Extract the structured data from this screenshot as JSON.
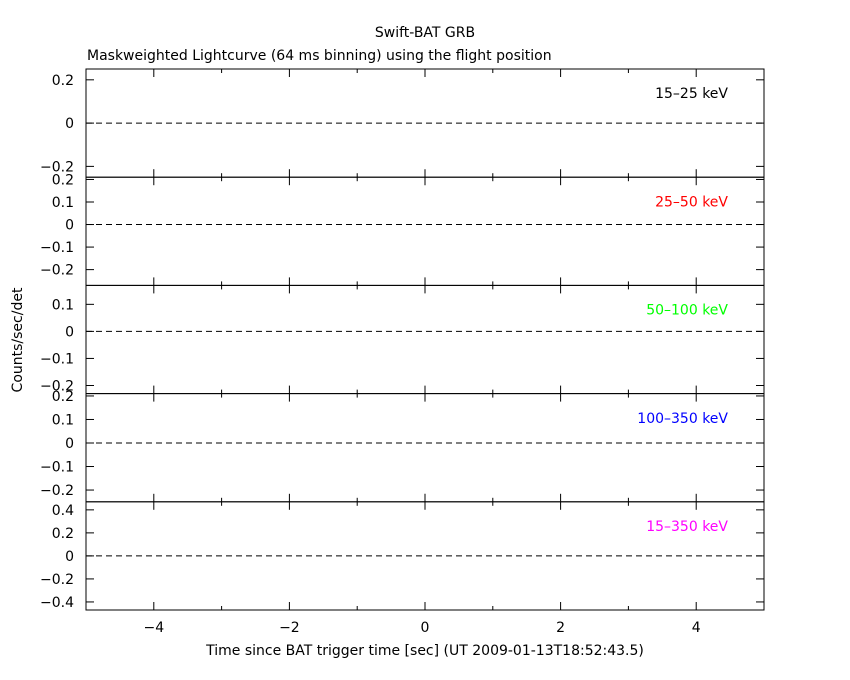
{
  "title": "Swift-BAT GRB",
  "subtitle": "Maskweighted Lightcurve (64 ms binning) using the flight position",
  "ylabel": "Counts/sec/det",
  "xlabel": "Time since BAT trigger time [sec] (UT 2009-01-13T18:52:43.5)",
  "chart_data": {
    "type": "line",
    "title": "Swift-BAT GRB",
    "subtitle": "Maskweighted Lightcurve (64 ms binning) using the flight position",
    "xlabel": "Time since BAT trigger time [sec] (UT 2009-01-13T18:52:43.5)",
    "ylabel": "Counts/sec/det",
    "xlim": [
      -5,
      5
    ],
    "xticks": [
      -4,
      -2,
      0,
      2,
      4
    ],
    "xtick_labels": [
      "−4",
      "−2",
      "0",
      "2",
      "4"
    ],
    "reference_line": 0,
    "panels": [
      {
        "name": "15–25 keV",
        "color": "#000000",
        "ylim": [
          -0.25,
          0.25
        ],
        "yticks": [
          -0.2,
          0,
          0.2
        ],
        "ytick_labels": [
          "−0.2",
          "0",
          "0.2"
        ],
        "values": []
      },
      {
        "name": "25–50 keV",
        "color": "#ff0000",
        "ylim": [
          -0.27,
          0.21
        ],
        "yticks": [
          -0.2,
          -0.1,
          0,
          0.1,
          0.2
        ],
        "ytick_labels": [
          "−0.2",
          "−0.1",
          "0",
          "0.1",
          "0.2"
        ],
        "values": []
      },
      {
        "name": "50–100 keV",
        "color": "#00ff00",
        "ylim": [
          -0.23,
          0.17
        ],
        "yticks": [
          -0.2,
          -0.1,
          0,
          0.1
        ],
        "ytick_labels": [
          "−0.2",
          "−0.1",
          "0",
          "0.1"
        ],
        "values": []
      },
      {
        "name": "100–350 keV",
        "color": "#0000ff",
        "ylim": [
          -0.25,
          0.21
        ],
        "yticks": [
          -0.2,
          -0.1,
          0,
          0.1,
          0.2
        ],
        "ytick_labels": [
          "−0.2",
          "−0.1",
          "0",
          "0.1",
          "0.2"
        ],
        "values": []
      },
      {
        "name": "15–350 keV",
        "color": "#ff00ff",
        "ylim": [
          -0.47,
          0.47
        ],
        "yticks": [
          -0.4,
          -0.2,
          0,
          0.2,
          0.4
        ],
        "ytick_labels": [
          "−0.4",
          "−0.2",
          "0",
          "0.2",
          "0.4"
        ],
        "values": []
      }
    ]
  }
}
